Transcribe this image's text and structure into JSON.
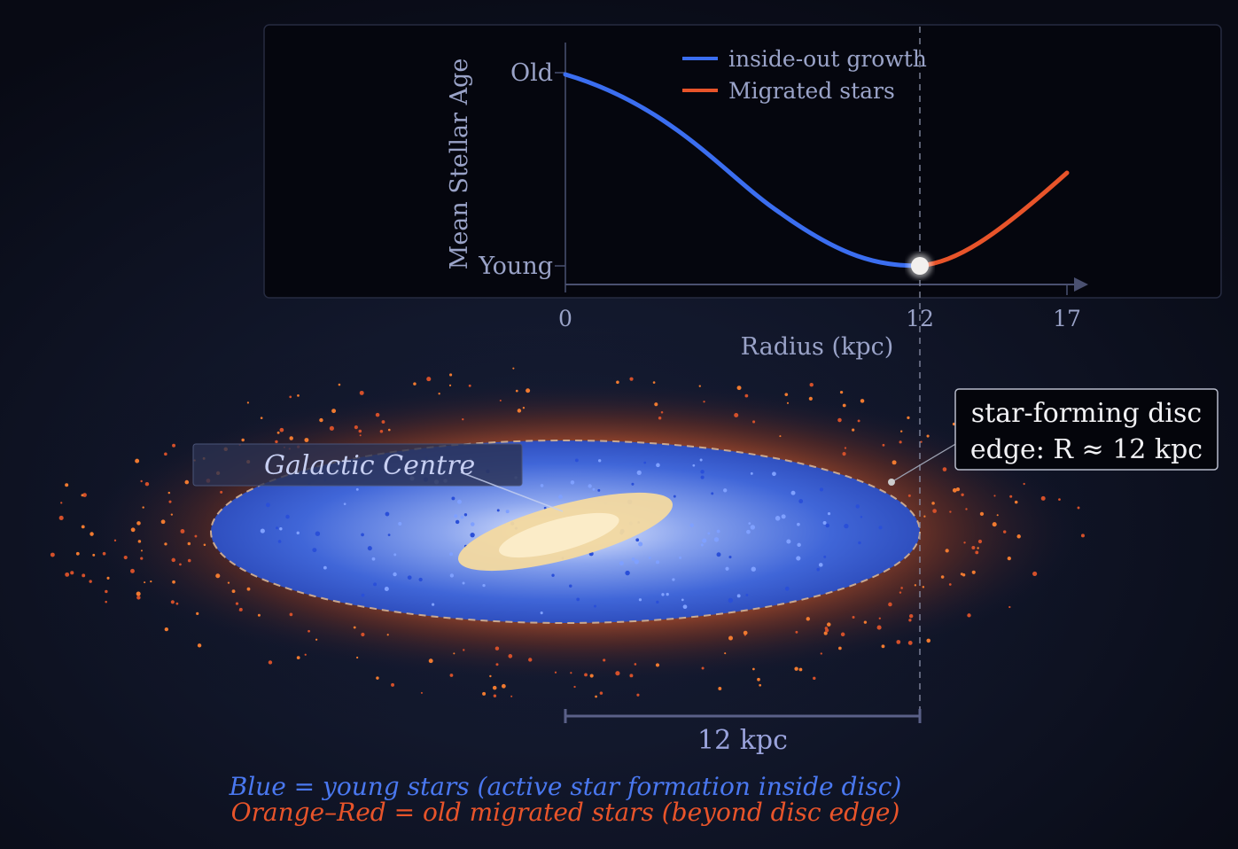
{
  "chart": {
    "ylabel": "Mean Stellar Age",
    "xlabel": "Radius (kpc)",
    "y_ticks": [
      "Old",
      "Young"
    ],
    "x_ticks": [
      "0",
      "12",
      "17"
    ],
    "legend": [
      {
        "label": "inside-out growth",
        "color": "#3b6ef0"
      },
      {
        "label": "Migrated stars",
        "color": "#e8542a"
      }
    ]
  },
  "chart_data": {
    "type": "line",
    "xlabel": "Radius (kpc)",
    "ylabel": "Mean Stellar Age",
    "x_ticks": [
      0,
      12,
      17
    ],
    "y_ticks": [
      "Young",
      "Old"
    ],
    "xlim": [
      0,
      17
    ],
    "legend_position": "top",
    "series": [
      {
        "name": "inside-out growth",
        "color": "#3b6ef0",
        "x": [
          0,
          2,
          4,
          6,
          8,
          10,
          12
        ],
        "y": [
          1.0,
          0.9,
          0.7,
          0.45,
          0.22,
          0.06,
          0.0
        ]
      },
      {
        "name": "Migrated stars",
        "color": "#e8542a",
        "x": [
          12,
          13.5,
          15,
          17
        ],
        "y": [
          0.0,
          0.1,
          0.24,
          0.48
        ]
      }
    ],
    "markers": [
      {
        "x": 12,
        "label": "disc edge"
      }
    ]
  },
  "diagram": {
    "centre_label": "Galactic Centre",
    "edge_label_line1": "star-forming disc",
    "edge_label_line2": "edge: R ≈ 12 kpc",
    "scale_label": "12 kpc",
    "caption_blue": "Blue = young stars (active star formation inside disc)",
    "caption_orange": "Orange–Red = old migrated stars (beyond disc edge)",
    "colors": {
      "young": "#3b6ef0",
      "old": "#e8542a",
      "bulge": "#f6dba0",
      "text": "#9aa3c8"
    }
  }
}
